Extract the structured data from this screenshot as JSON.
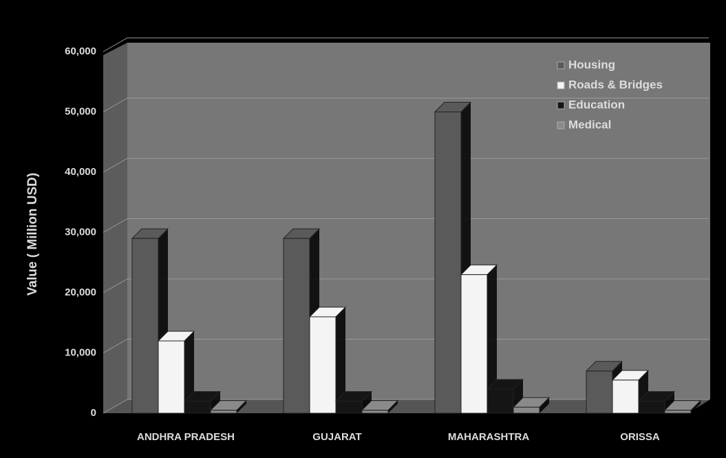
{
  "chart_data": {
    "type": "bar3d",
    "ylabel": "Value ( Million USD)",
    "categories": [
      "ANDHRA PRADESH",
      "GUJARAT",
      "MAHARASHTRA",
      "ORISSA"
    ],
    "series": [
      {
        "name": "Housing",
        "color": "#5a5a5a",
        "values": [
          29000,
          29000,
          50000,
          7000
        ]
      },
      {
        "name": "Roads & Bridges",
        "color": "#f4f4f4",
        "values": [
          12000,
          16000,
          23000,
          5500
        ]
      },
      {
        "name": "Education",
        "color": "#151515",
        "values": [
          2000,
          2000,
          4000,
          2000
        ]
      },
      {
        "name": "Medical",
        "color": "#8a8a8a",
        "values": [
          500,
          500,
          1000,
          500
        ]
      }
    ],
    "ylim": [
      0,
      60000
    ],
    "yticks": [
      0,
      {
        "value": 10000,
        "label": "10,000"
      },
      {
        "value": 20000,
        "label": "20,000"
      },
      {
        "value": 30000,
        "label": "30,000"
      },
      {
        "value": 40000,
        "label": "40,000"
      },
      {
        "value": 50000,
        "label": "50,000"
      },
      {
        "value": 60000,
        "label": "60,000"
      }
    ],
    "grid": true,
    "legend": "upper right"
  }
}
